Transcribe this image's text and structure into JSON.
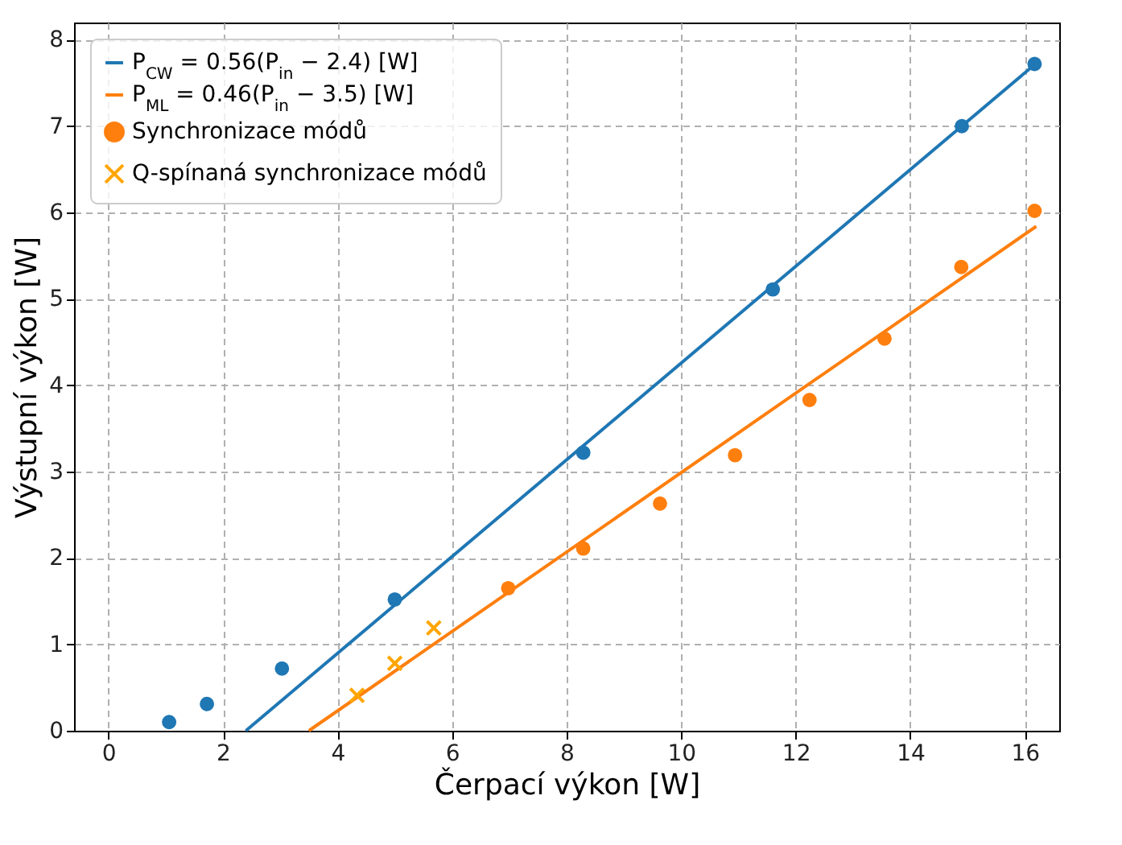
{
  "chart_data": {
    "type": "scatter",
    "xlabel": "Čerpací výkon [W]",
    "ylabel": "Výstupní výkon [W]",
    "xlim": [
      -0.6,
      16.6
    ],
    "ylim": [
      0,
      8.2
    ],
    "xticks": [
      0,
      2,
      4,
      6,
      8,
      10,
      12,
      14,
      16
    ],
    "yticks": [
      0,
      1,
      2,
      3,
      4,
      5,
      6,
      7,
      8
    ],
    "grid": true,
    "legend": "top left",
    "series": [
      {
        "name": "P$_{CW}$ = 0.56(P$_{in}$ − 2.4) [W]",
        "type": "line",
        "color": "#1f77b4",
        "x": [
          2.4,
          16.2
        ],
        "values": [
          0,
          7.73
        ]
      },
      {
        "name": "P$_{ML}$ = 0.46(P$_{in}$ − 3.5) [W]",
        "type": "line",
        "color": "#ff7f0e",
        "x": [
          3.5,
          16.2
        ],
        "values": [
          0,
          5.84
        ]
      },
      {
        "marker": "circle",
        "color": "#1f77b4",
        "x": [
          1.06,
          1.72,
          3.03,
          5.0,
          8.29,
          11.6,
          14.9,
          16.17
        ],
        "values": [
          0.1,
          0.31,
          0.72,
          1.52,
          3.22,
          5.11,
          7.0,
          7.72
        ]
      },
      {
        "name": "Synchronizace módů",
        "marker": "circle",
        "color": "#ff7f0e",
        "x": [
          6.98,
          8.29,
          9.63,
          10.94,
          12.24,
          13.55,
          14.89,
          16.17
        ],
        "values": [
          1.65,
          2.11,
          2.63,
          3.19,
          3.83,
          4.54,
          5.37,
          6.02
        ]
      },
      {
        "name": "Q-spínaná synchronizace módů",
        "marker": "cross",
        "color": "#ffa500",
        "x": [
          4.34,
          5.0,
          5.68
        ],
        "values": [
          0.41,
          0.78,
          1.19
        ]
      }
    ]
  }
}
